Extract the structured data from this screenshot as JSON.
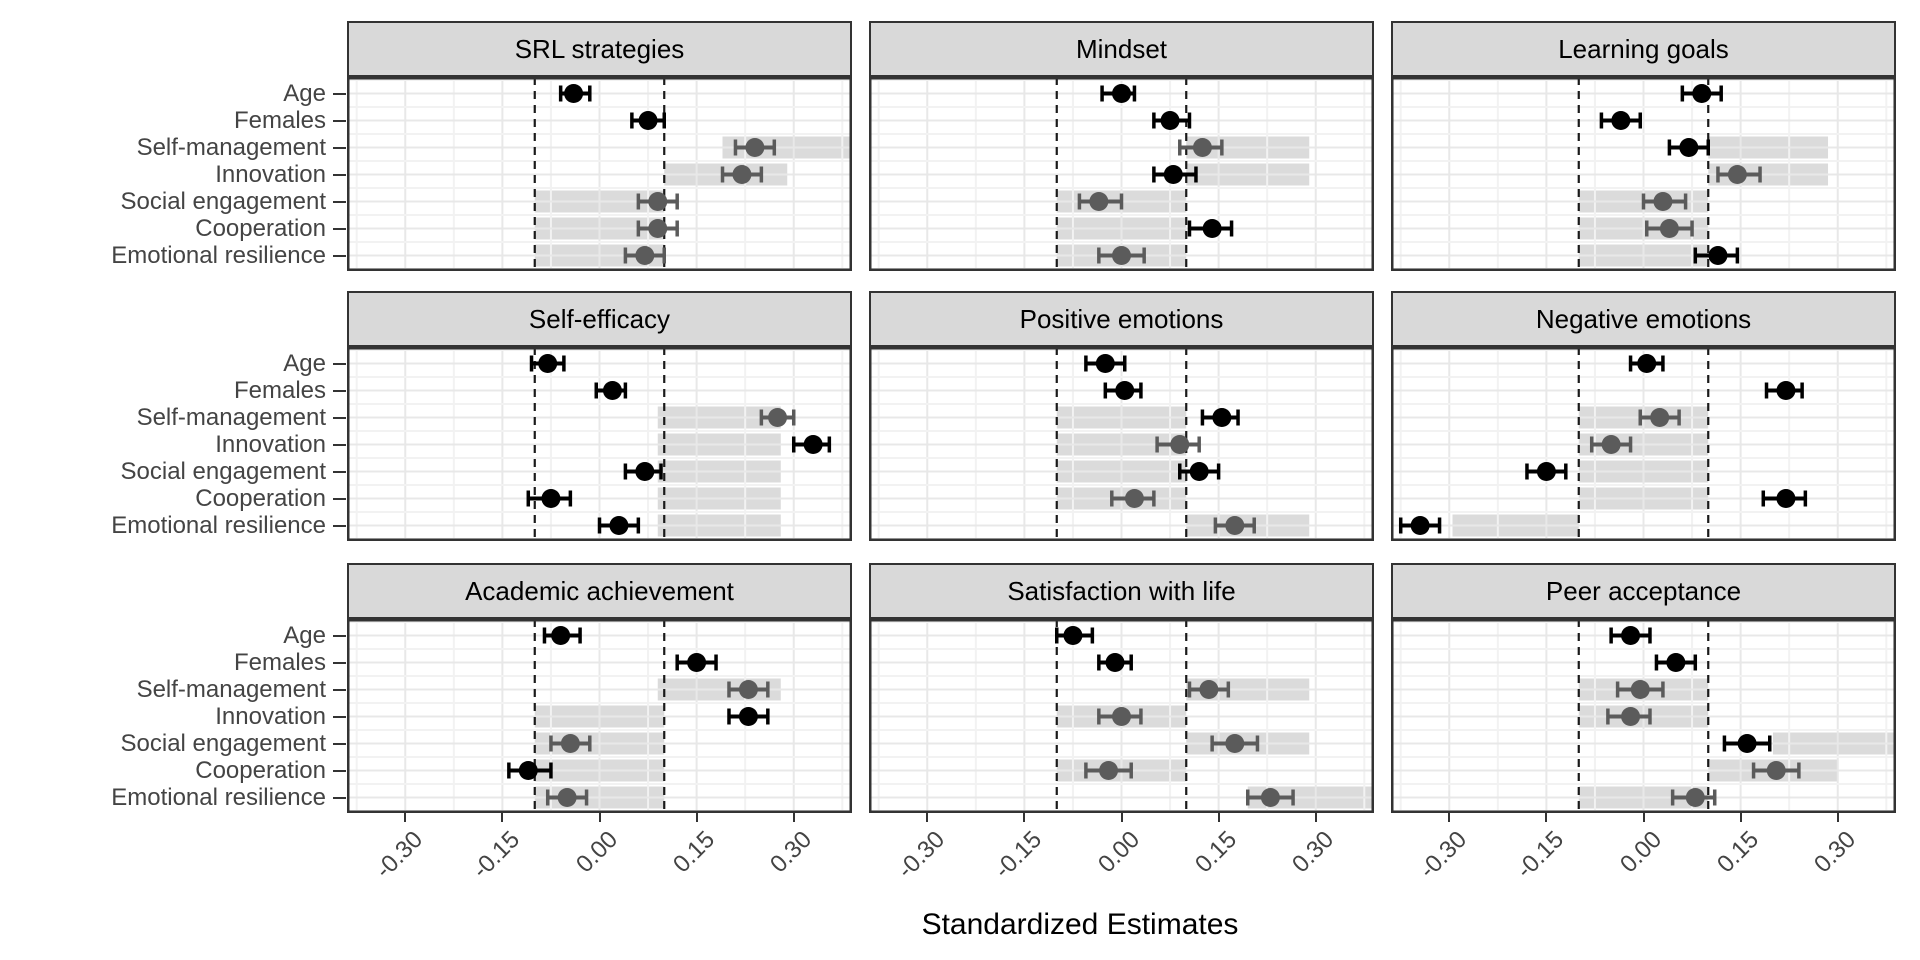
{
  "chart_data": {
    "type": "dot-whisker",
    "description": "3x3 faceted forest plot of standardized estimates with 95% intervals, light-gray reference bands, and dashed reference lines at -0.10 and 0.10",
    "xlabel": "Standardized Estimates",
    "x_axis": {
      "range": [
        -0.39,
        0.39
      ],
      "ticks": [
        -0.3,
        -0.15,
        0.0,
        0.15,
        0.3
      ],
      "tick_labels": [
        "-0.30",
        "-0.15",
        "0.00",
        "0.15",
        "0.30"
      ],
      "minor_ticks": [
        -0.375,
        -0.225,
        -0.075,
        0.075,
        0.225,
        0.375
      ],
      "dashed_reference_lines": [
        -0.1,
        0.1
      ]
    },
    "y_categories": [
      "Age",
      "Females",
      "Self-management",
      "Innovation",
      "Social engagement",
      "Cooperation",
      "Emotional resilience"
    ],
    "grid": {
      "rows": 3,
      "cols": 3,
      "legend": "none",
      "gridlines": true
    },
    "colors": {
      "background": "#ffffff",
      "panel_border": "#333333",
      "strip_fill": "#d9d9d9",
      "grid_major": "#e8e8e8",
      "grid_minor": "#f2f2f2",
      "band_fill": "#dbdbdb",
      "dashed_line": "#1a1a1a",
      "point_black": "#000000",
      "point_gray": "#5b5b5b",
      "axis_text": "#444444",
      "tick_mark": "#333333"
    },
    "panels": [
      {
        "title": "SRL strategies",
        "rows": [
          {
            "label": "Age",
            "estimate": -0.04,
            "ci": [
              -0.06,
              -0.015
            ],
            "point": "black",
            "band": null
          },
          {
            "label": "Females",
            "estimate": 0.075,
            "ci": [
              0.05,
              0.1
            ],
            "point": "black",
            "band": null
          },
          {
            "label": "Self-management",
            "estimate": 0.24,
            "ci": [
              0.21,
              0.27
            ],
            "point": "gray",
            "band": [
              0.19,
              0.39
            ]
          },
          {
            "label": "Innovation",
            "estimate": 0.22,
            "ci": [
              0.19,
              0.25
            ],
            "point": "gray",
            "band": [
              0.1,
              0.29
            ]
          },
          {
            "label": "Social engagement",
            "estimate": 0.09,
            "ci": [
              0.06,
              0.12
            ],
            "point": "gray",
            "band": [
              -0.1,
              0.1
            ]
          },
          {
            "label": "Cooperation",
            "estimate": 0.09,
            "ci": [
              0.06,
              0.12
            ],
            "point": "gray",
            "band": [
              -0.1,
              0.1
            ]
          },
          {
            "label": "Emotional resilience",
            "estimate": 0.07,
            "ci": [
              0.04,
              0.1
            ],
            "point": "gray",
            "band": [
              -0.1,
              0.1
            ]
          }
        ]
      },
      {
        "title": "Mindset",
        "rows": [
          {
            "label": "Age",
            "estimate": 0.0,
            "ci": [
              -0.03,
              0.02
            ],
            "point": "black",
            "band": null
          },
          {
            "label": "Females",
            "estimate": 0.075,
            "ci": [
              0.05,
              0.105
            ],
            "point": "black",
            "band": null
          },
          {
            "label": "Self-management",
            "estimate": 0.125,
            "ci": [
              0.09,
              0.155
            ],
            "point": "gray",
            "band": [
              0.1,
              0.29
            ]
          },
          {
            "label": "Innovation",
            "estimate": 0.08,
            "ci": [
              0.05,
              0.115
            ],
            "point": "black",
            "band": [
              0.1,
              0.29
            ]
          },
          {
            "label": "Social engagement",
            "estimate": -0.035,
            "ci": [
              -0.065,
              0.0
            ],
            "point": "gray",
            "band": [
              -0.1,
              0.1
            ]
          },
          {
            "label": "Cooperation",
            "estimate": 0.14,
            "ci": [
              0.105,
              0.17
            ],
            "point": "black",
            "band": [
              -0.1,
              0.1
            ]
          },
          {
            "label": "Emotional resilience",
            "estimate": 0.0,
            "ci": [
              -0.035,
              0.035
            ],
            "point": "gray",
            "band": [
              -0.1,
              0.1
            ]
          }
        ]
      },
      {
        "title": "Learning goals",
        "rows": [
          {
            "label": "Age",
            "estimate": 0.09,
            "ci": [
              0.06,
              0.12
            ],
            "point": "black",
            "band": null
          },
          {
            "label": "Females",
            "estimate": -0.035,
            "ci": [
              -0.065,
              -0.005
            ],
            "point": "black",
            "band": null
          },
          {
            "label": "Self-management",
            "estimate": 0.07,
            "ci": [
              0.04,
              0.1
            ],
            "point": "black",
            "band": [
              0.1,
              0.285
            ]
          },
          {
            "label": "Innovation",
            "estimate": 0.145,
            "ci": [
              0.115,
              0.18
            ],
            "point": "gray",
            "band": [
              0.1,
              0.285
            ]
          },
          {
            "label": "Social engagement",
            "estimate": 0.03,
            "ci": [
              0.0,
              0.065
            ],
            "point": "gray",
            "band": [
              -0.1,
              0.1
            ]
          },
          {
            "label": "Cooperation",
            "estimate": 0.04,
            "ci": [
              0.005,
              0.075
            ],
            "point": "gray",
            "band": [
              -0.1,
              0.1
            ]
          },
          {
            "label": "Emotional resilience",
            "estimate": 0.115,
            "ci": [
              0.08,
              0.145
            ],
            "point": "black",
            "band": [
              -0.1,
              0.1
            ]
          }
        ]
      },
      {
        "title": "Self-efficacy",
        "rows": [
          {
            "label": "Age",
            "estimate": -0.08,
            "ci": [
              -0.105,
              -0.055
            ],
            "point": "black",
            "band": null
          },
          {
            "label": "Females",
            "estimate": 0.02,
            "ci": [
              -0.005,
              0.04
            ],
            "point": "black",
            "band": null
          },
          {
            "label": "Self-management",
            "estimate": 0.275,
            "ci": [
              0.25,
              0.3
            ],
            "point": "gray",
            "band": [
              0.09,
              0.28
            ]
          },
          {
            "label": "Innovation",
            "estimate": 0.33,
            "ci": [
              0.3,
              0.355
            ],
            "point": "black",
            "band": [
              0.09,
              0.28
            ]
          },
          {
            "label": "Social engagement",
            "estimate": 0.07,
            "ci": [
              0.04,
              0.095
            ],
            "point": "black",
            "band": [
              0.09,
              0.28
            ]
          },
          {
            "label": "Cooperation",
            "estimate": -0.075,
            "ci": [
              -0.11,
              -0.045
            ],
            "point": "black",
            "band": [
              0.09,
              0.28
            ]
          },
          {
            "label": "Emotional resilience",
            "estimate": 0.03,
            "ci": [
              0.0,
              0.06
            ],
            "point": "black",
            "band": [
              0.09,
              0.28
            ]
          }
        ]
      },
      {
        "title": "Positive emotions",
        "rows": [
          {
            "label": "Age",
            "estimate": -0.025,
            "ci": [
              -0.055,
              0.005
            ],
            "point": "black",
            "band": null
          },
          {
            "label": "Females",
            "estimate": 0.005,
            "ci": [
              -0.025,
              0.03
            ],
            "point": "black",
            "band": null
          },
          {
            "label": "Self-management",
            "estimate": 0.155,
            "ci": [
              0.125,
              0.18
            ],
            "point": "black",
            "band": [
              -0.1,
              0.1
            ]
          },
          {
            "label": "Innovation",
            "estimate": 0.09,
            "ci": [
              0.055,
              0.12
            ],
            "point": "gray",
            "band": [
              -0.1,
              0.1
            ]
          },
          {
            "label": "Social engagement",
            "estimate": 0.12,
            "ci": [
              0.09,
              0.15
            ],
            "point": "black",
            "band": [
              -0.1,
              0.1
            ]
          },
          {
            "label": "Cooperation",
            "estimate": 0.02,
            "ci": [
              -0.015,
              0.05
            ],
            "point": "gray",
            "band": [
              -0.1,
              0.1
            ]
          },
          {
            "label": "Emotional resilience",
            "estimate": 0.175,
            "ci": [
              0.145,
              0.205
            ],
            "point": "gray",
            "band": [
              0.1,
              0.29
            ]
          }
        ]
      },
      {
        "title": "Negative emotions",
        "rows": [
          {
            "label": "Age",
            "estimate": 0.005,
            "ci": [
              -0.02,
              0.03
            ],
            "point": "black",
            "band": null
          },
          {
            "label": "Females",
            "estimate": 0.22,
            "ci": [
              0.19,
              0.245
            ],
            "point": "black",
            "band": null
          },
          {
            "label": "Self-management",
            "estimate": 0.025,
            "ci": [
              -0.005,
              0.055
            ],
            "point": "gray",
            "band": [
              -0.1,
              0.1
            ]
          },
          {
            "label": "Innovation",
            "estimate": -0.05,
            "ci": [
              -0.08,
              -0.02
            ],
            "point": "gray",
            "band": [
              -0.1,
              0.1
            ]
          },
          {
            "label": "Social engagement",
            "estimate": -0.15,
            "ci": [
              -0.18,
              -0.12
            ],
            "point": "black",
            "band": [
              -0.1,
              0.1
            ]
          },
          {
            "label": "Cooperation",
            "estimate": 0.22,
            "ci": [
              0.185,
              0.25
            ],
            "point": "black",
            "band": [
              -0.1,
              0.1
            ]
          },
          {
            "label": "Emotional resilience",
            "estimate": -0.345,
            "ci": [
              -0.375,
              -0.315
            ],
            "point": "black",
            "band": [
              -0.295,
              -0.1
            ]
          }
        ]
      },
      {
        "title": "Academic achievement",
        "rows": [
          {
            "label": "Age",
            "estimate": -0.06,
            "ci": [
              -0.085,
              -0.03
            ],
            "point": "black",
            "band": null
          },
          {
            "label": "Females",
            "estimate": 0.15,
            "ci": [
              0.12,
              0.18
            ],
            "point": "black",
            "band": null
          },
          {
            "label": "Self-management",
            "estimate": 0.23,
            "ci": [
              0.2,
              0.26
            ],
            "point": "gray",
            "band": [
              0.09,
              0.28
            ]
          },
          {
            "label": "Innovation",
            "estimate": 0.23,
            "ci": [
              0.2,
              0.26
            ],
            "point": "black",
            "band": [
              -0.1,
              0.1
            ]
          },
          {
            "label": "Social engagement",
            "estimate": -0.045,
            "ci": [
              -0.075,
              -0.015
            ],
            "point": "gray",
            "band": [
              -0.1,
              0.1
            ]
          },
          {
            "label": "Cooperation",
            "estimate": -0.11,
            "ci": [
              -0.14,
              -0.075
            ],
            "point": "black",
            "band": [
              -0.1,
              0.1
            ]
          },
          {
            "label": "Emotional resilience",
            "estimate": -0.05,
            "ci": [
              -0.08,
              -0.02
            ],
            "point": "gray",
            "band": [
              -0.1,
              0.1
            ]
          }
        ]
      },
      {
        "title": "Satisfaction with life",
        "rows": [
          {
            "label": "Age",
            "estimate": -0.075,
            "ci": [
              -0.1,
              -0.045
            ],
            "point": "black",
            "band": null
          },
          {
            "label": "Females",
            "estimate": -0.01,
            "ci": [
              -0.035,
              0.015
            ],
            "point": "black",
            "band": null
          },
          {
            "label": "Self-management",
            "estimate": 0.135,
            "ci": [
              0.105,
              0.165
            ],
            "point": "gray",
            "band": [
              0.1,
              0.29
            ]
          },
          {
            "label": "Innovation",
            "estimate": 0.0,
            "ci": [
              -0.035,
              0.03
            ],
            "point": "gray",
            "band": [
              -0.1,
              0.1
            ]
          },
          {
            "label": "Social engagement",
            "estimate": 0.175,
            "ci": [
              0.14,
              0.21
            ],
            "point": "gray",
            "band": [
              0.1,
              0.29
            ]
          },
          {
            "label": "Cooperation",
            "estimate": -0.02,
            "ci": [
              -0.055,
              0.015
            ],
            "point": "gray",
            "band": [
              -0.1,
              0.1
            ]
          },
          {
            "label": "Emotional resilience",
            "estimate": 0.23,
            "ci": [
              0.195,
              0.265
            ],
            "point": "gray",
            "band": [
              0.195,
              0.39
            ]
          }
        ]
      },
      {
        "title": "Peer acceptance",
        "rows": [
          {
            "label": "Age",
            "estimate": -0.02,
            "ci": [
              -0.05,
              0.01
            ],
            "point": "black",
            "band": null
          },
          {
            "label": "Females",
            "estimate": 0.05,
            "ci": [
              0.02,
              0.08
            ],
            "point": "black",
            "band": null
          },
          {
            "label": "Self-management",
            "estimate": -0.005,
            "ci": [
              -0.04,
              0.03
            ],
            "point": "gray",
            "band": [
              -0.1,
              0.1
            ]
          },
          {
            "label": "Innovation",
            "estimate": -0.02,
            "ci": [
              -0.055,
              0.01
            ],
            "point": "gray",
            "band": [
              -0.1,
              0.1
            ]
          },
          {
            "label": "Social engagement",
            "estimate": 0.16,
            "ci": [
              0.125,
              0.195
            ],
            "point": "black",
            "band": [
              0.2,
              0.39
            ]
          },
          {
            "label": "Cooperation",
            "estimate": 0.205,
            "ci": [
              0.17,
              0.24
            ],
            "point": "gray",
            "band": [
              0.1,
              0.3
            ]
          },
          {
            "label": "Emotional resilience",
            "estimate": 0.08,
            "ci": [
              0.045,
              0.11
            ],
            "point": "gray",
            "band": [
              -0.1,
              0.1
            ]
          }
        ]
      }
    ]
  }
}
